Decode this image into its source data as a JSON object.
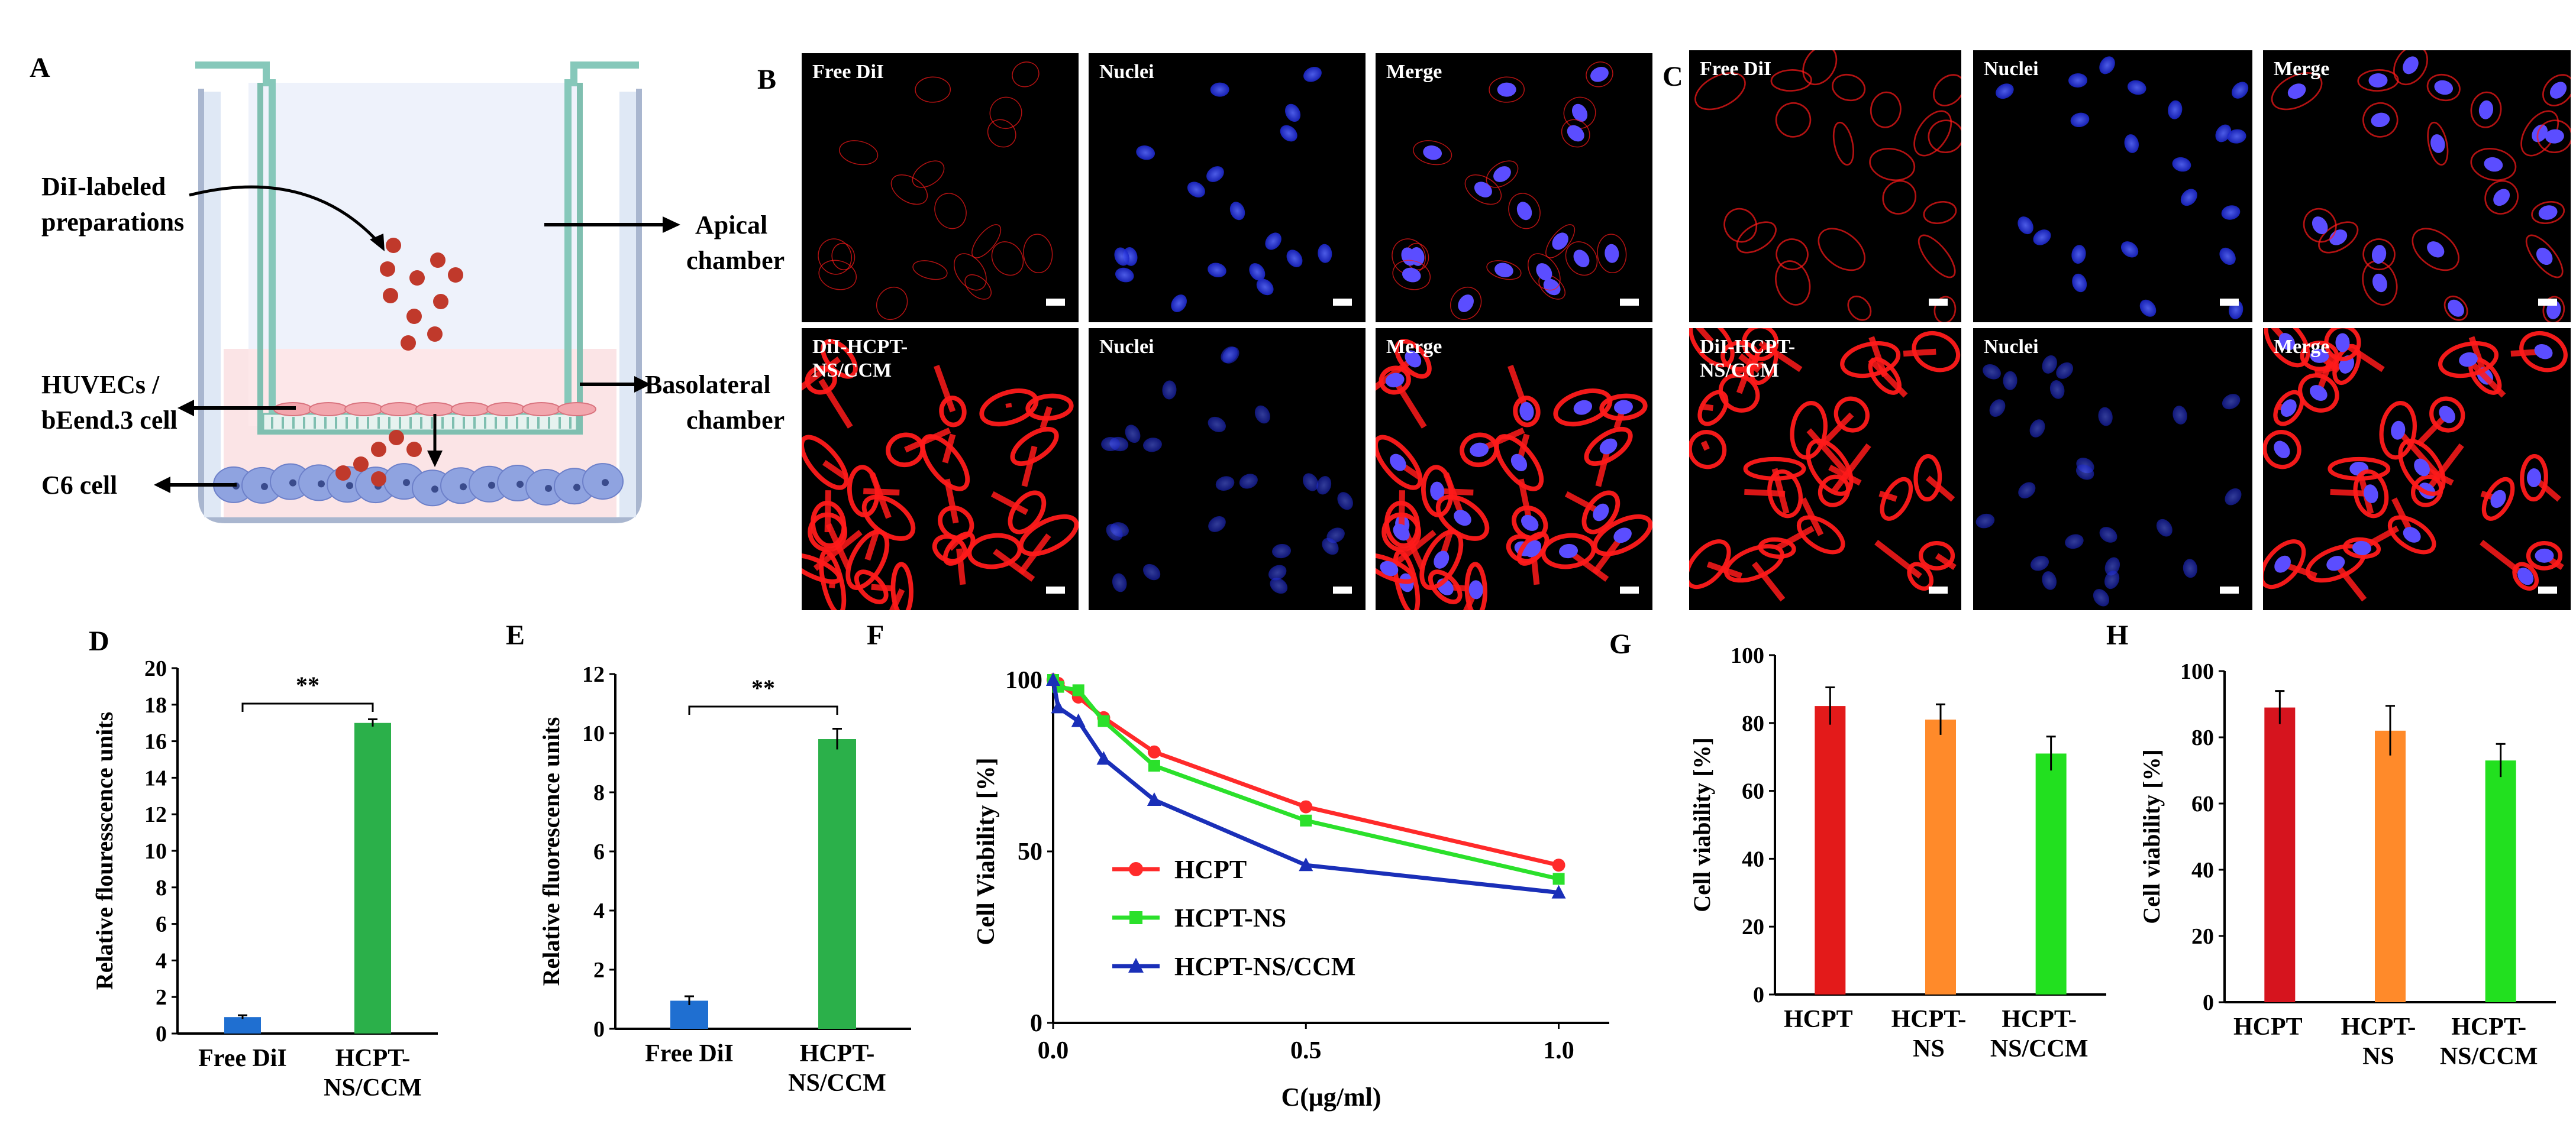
{
  "panel_letters": {
    "A": "A",
    "B": "B",
    "C": "C",
    "D": "D",
    "E": "E",
    "F": "F",
    "G": "G",
    "H": "H"
  },
  "schematic": {
    "dil_label": [
      "DiI-labeled",
      "preparations"
    ],
    "apical": [
      "Apical",
      "chamber"
    ],
    "basolateral": [
      "Basolateral",
      "chamber"
    ],
    "huvec": [
      "HUVECs /",
      "bEend.3 cell"
    ],
    "c6": "C6 cell",
    "colors": {
      "dil_red": "#c0392b",
      "membrane_pink": "#f4c9cf",
      "c6_blue": "#8fa3e0",
      "frame": "#b9cde8"
    }
  },
  "micro": {
    "B_top": [
      "Free DiI",
      "Nuclei",
      "Merge"
    ],
    "B_bottom": [
      "DiI-HCPT-",
      "NS/CCM",
      "Nuclei",
      "Merge"
    ],
    "C_top": [
      "Free DiI",
      "Nuclei",
      "Merge"
    ],
    "C_bottom": [
      "DiI-HCPT-",
      "NS/CCM",
      "Nuclei",
      "Merge"
    ],
    "colors": {
      "red": "#ff1a1a",
      "blue": "#2a3cff",
      "merge_nucleus": "#5b4dff"
    }
  },
  "chart_data": [
    {
      "id": "D",
      "type": "bar",
      "categories": [
        "Free DiI",
        "HCPT-\nNS/CCM"
      ],
      "values": [
        0.9,
        17.0
      ],
      "errors": [
        0.1,
        0.2
      ],
      "colors": [
        "#1f6fd1",
        "#2bb04a"
      ],
      "ylabel": "Relative flouresscence units",
      "ylim": [
        0,
        20
      ],
      "yticks": [
        0,
        2,
        4,
        6,
        8,
        10,
        12,
        14,
        16,
        18,
        20
      ],
      "significance": "**"
    },
    {
      "id": "E",
      "type": "bar",
      "categories": [
        "Free DiI",
        "HCPT-\nNS/CCM"
      ],
      "values": [
        0.95,
        9.8
      ],
      "errors": [
        0.15,
        0.35
      ],
      "colors": [
        "#1f6fd1",
        "#2bb04a"
      ],
      "ylabel": "Relative fluorescence units",
      "ylim": [
        0,
        12
      ],
      "yticks": [
        0,
        2,
        4,
        6,
        8,
        10,
        12
      ],
      "significance": "**"
    },
    {
      "id": "F",
      "type": "line",
      "x": [
        0,
        0.01,
        0.05,
        0.1,
        0.2,
        0.5,
        1.0
      ],
      "series": [
        {
          "name": "HCPT",
          "color": "#ff2a2a",
          "marker": "circle",
          "values": [
            100,
            99,
            95,
            89,
            79,
            63,
            46
          ]
        },
        {
          "name": "HCPT-NS",
          "color": "#2be02b",
          "marker": "square",
          "values": [
            100,
            98,
            97,
            88,
            75,
            59,
            42
          ]
        },
        {
          "name": "HCPT-NS/CCM",
          "color": "#1a2fb8",
          "marker": "triangle",
          "values": [
            100,
            92,
            88,
            77,
            65,
            46,
            38
          ]
        }
      ],
      "xlabel": "C(μg/ml)",
      "ylabel": "Cell Viability [%]",
      "xlim": [
        0,
        1.1
      ],
      "ylim": [
        0,
        100
      ],
      "xticks": [
        "0.0",
        "0.5",
        "1.0"
      ],
      "yticks": [
        "0",
        "50",
        "100"
      ]
    },
    {
      "id": "G",
      "type": "bar",
      "categories": [
        "HCPT",
        "HCPT-\nNS",
        "HCPT-\nNS/CCM"
      ],
      "values": [
        85,
        81,
        71
      ],
      "errors": [
        5.5,
        4.5,
        5
      ],
      "colors": [
        "#e31a1a",
        "#ff8a2a",
        "#22e01f"
      ],
      "ylabel": "Cell viability [%]",
      "ylim": [
        0,
        100
      ],
      "yticks": [
        0,
        20,
        40,
        60,
        80,
        100
      ]
    },
    {
      "id": "H",
      "type": "bar",
      "categories": [
        "HCPT",
        "HCPT-\nNS",
        "HCPT-\nNS/CCM"
      ],
      "values": [
        89,
        82,
        73
      ],
      "errors": [
        5,
        7.5,
        5
      ],
      "colors": [
        "#d6141e",
        "#ff8a2a",
        "#22e01f"
      ],
      "ylabel": "Cell viability [%]",
      "ylim": [
        0,
        100
      ],
      "yticks": [
        0,
        20,
        40,
        60,
        80,
        100
      ]
    }
  ]
}
